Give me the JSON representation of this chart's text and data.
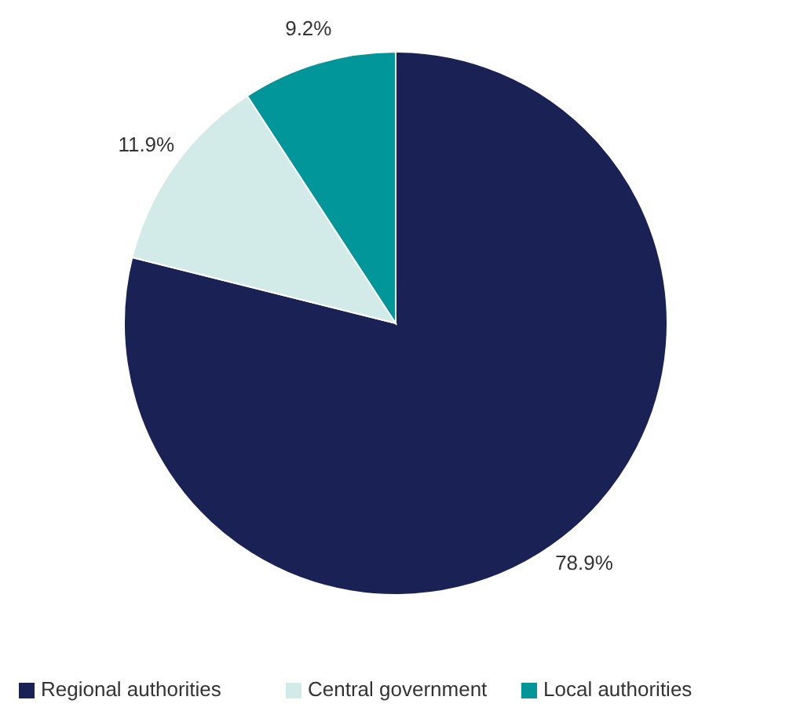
{
  "chart_data": {
    "type": "pie",
    "categories": [
      "Regional authorities",
      "Central government",
      "Local authorities"
    ],
    "values": [
      78.9,
      11.9,
      9.2
    ],
    "colors": [
      "#1a2155",
      "#d3ebe8",
      "#00969a"
    ],
    "value_labels": [
      "78.9%",
      "11.9%",
      "9.2%"
    ],
    "legend": "bottom"
  }
}
